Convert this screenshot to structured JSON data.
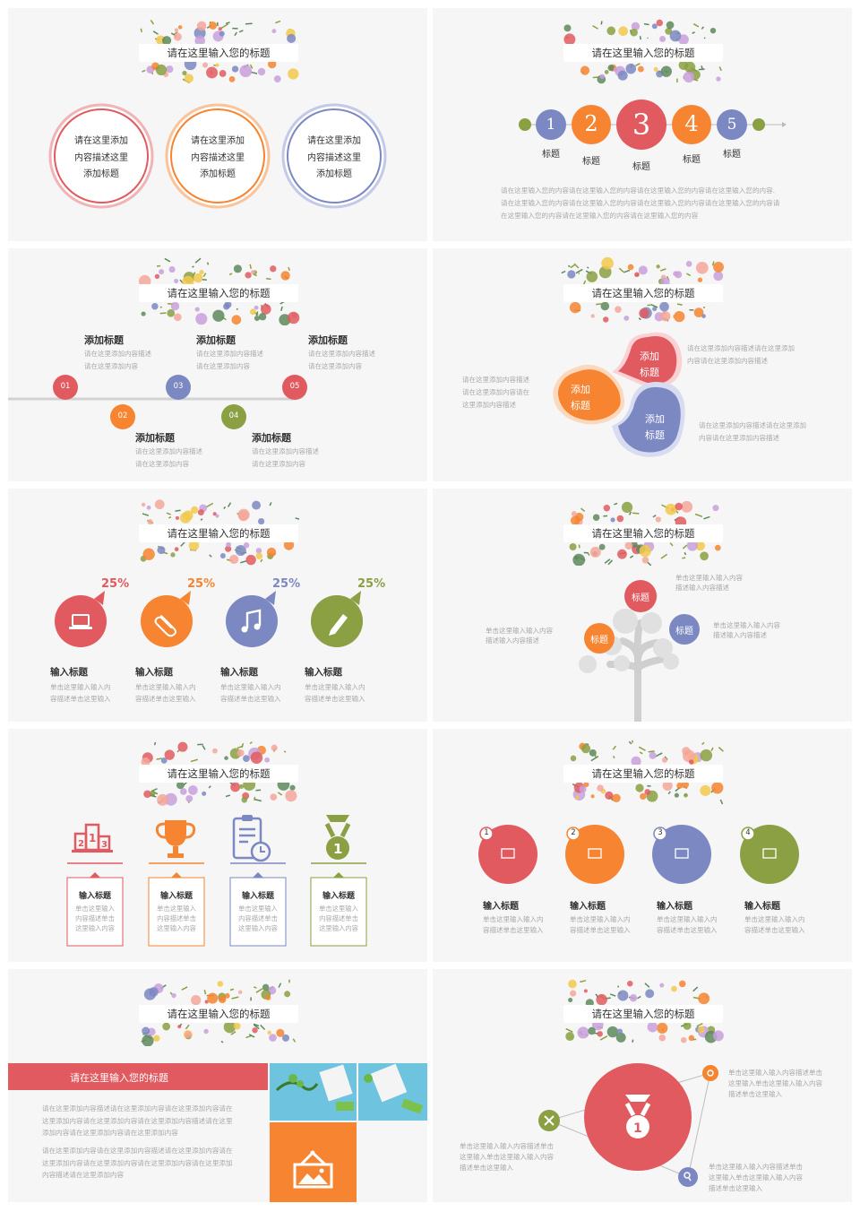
{
  "header_title": "请在这里输入您的标题",
  "colors": {
    "red": "#e05a5f",
    "orange": "#f68430",
    "blue": "#7b88c2",
    "green": "#8aa042",
    "bg": "#f6f6f6"
  },
  "s1": {
    "circles": [
      {
        "l1": "请在这里添加",
        "l2": "内容描述这里",
        "l3": "添加标题"
      },
      {
        "l1": "请在这里添加",
        "l2": "内容描述这里",
        "l3": "添加标题"
      },
      {
        "l1": "请在这里添加",
        "l2": "内容描述这里",
        "l3": "添加标题"
      }
    ]
  },
  "s2": {
    "nums": [
      "1",
      "2",
      "3",
      "4",
      "5"
    ],
    "label": "标题",
    "para": [
      "请在这里输入您的内容请在这里输入您的内容请在这里输入您的内容请在这里输入您的内容.",
      "请在这里输入您的内容请在这里输入您的内容请在这里输入您的内容请在这里输入您的内容请",
      "在这里输入您的内容请在这里输入您的内容请在这里输入您的内容"
    ]
  },
  "s3": {
    "nums": [
      "01",
      "02",
      "03",
      "04",
      "05"
    ],
    "title": "添加标题",
    "d1": "请在这里添加内容描述",
    "d2": "请在这里添加内容"
  },
  "s4": {
    "petal_l1": "添加",
    "petal_l2": "标题",
    "left": [
      "请在这里添加内容描述",
      "请在这里添加内容请在",
      "这里添加内容描述"
    ],
    "tr": [
      "请在这里添加内容描述请在这里添加",
      "内容请在这里添加内容描述"
    ],
    "br": [
      "请在这里添加内容描述请在这里添加",
      "内容请在这里添加内容描述"
    ]
  },
  "s5": {
    "pct": "25%",
    "title": "输入标题",
    "d1": "单击这里输入输入内",
    "d2": "容描述单击这里输入",
    "icons": [
      "laptop-icon",
      "paperclip-icon",
      "music-note-icon",
      "pen-icon"
    ]
  },
  "s6": {
    "bubble": "标题",
    "t1": [
      "单击这里输入输入内容",
      "描述输入内容描述"
    ],
    "t2": [
      "单击这里输入输入内容",
      "描述输入内容描述"
    ],
    "t3": [
      "单击这里输入输入内容",
      "描述输入内容描述"
    ]
  },
  "s7": {
    "title": "输入标题",
    "d": [
      "单击这里输入",
      "内容描述单击",
      "这里输入内容"
    ],
    "icons": [
      "podium-icon",
      "trophy-icon",
      "clipboard-timer-icon",
      "medal-icon"
    ]
  },
  "s8": {
    "nums": [
      "1",
      "2",
      "3",
      "4"
    ],
    "title": "输入标题",
    "d1": "单击这里输入输入内",
    "d2": "容描述单击这里输入"
  },
  "s9": {
    "bar_title": "请在这里输入您的标题",
    "p1": [
      "请在这里添加内容描述请在这里添加内容请在这里添加内容请在",
      "这里添加内容请在这里添加内容请在这里添加内容描述请在这里",
      "添加内容请在这里添加内容请在这里添加内容"
    ],
    "p2": [
      "请在这里添加内容请在这里添加内容描述请在这里添加内容请在",
      "这里添加内容请在这里添加内容请在这里添加内容请在这里添加",
      "内容描述请在这里添加内容"
    ]
  },
  "s10": {
    "tr": [
      "单击这里输入输入内容描述单击",
      "这里输入单击这里输入输入内容",
      "描述单击这里输入"
    ],
    "left": [
      "单击这里输入输入内容描述单击",
      "这里输入单击这里输入输入内容",
      "描述单击这里输入"
    ],
    "br": [
      "单击这里输入输入内容描述单击",
      "这里输入单击这里输入输入内容",
      "描述单击这里输入"
    ]
  }
}
